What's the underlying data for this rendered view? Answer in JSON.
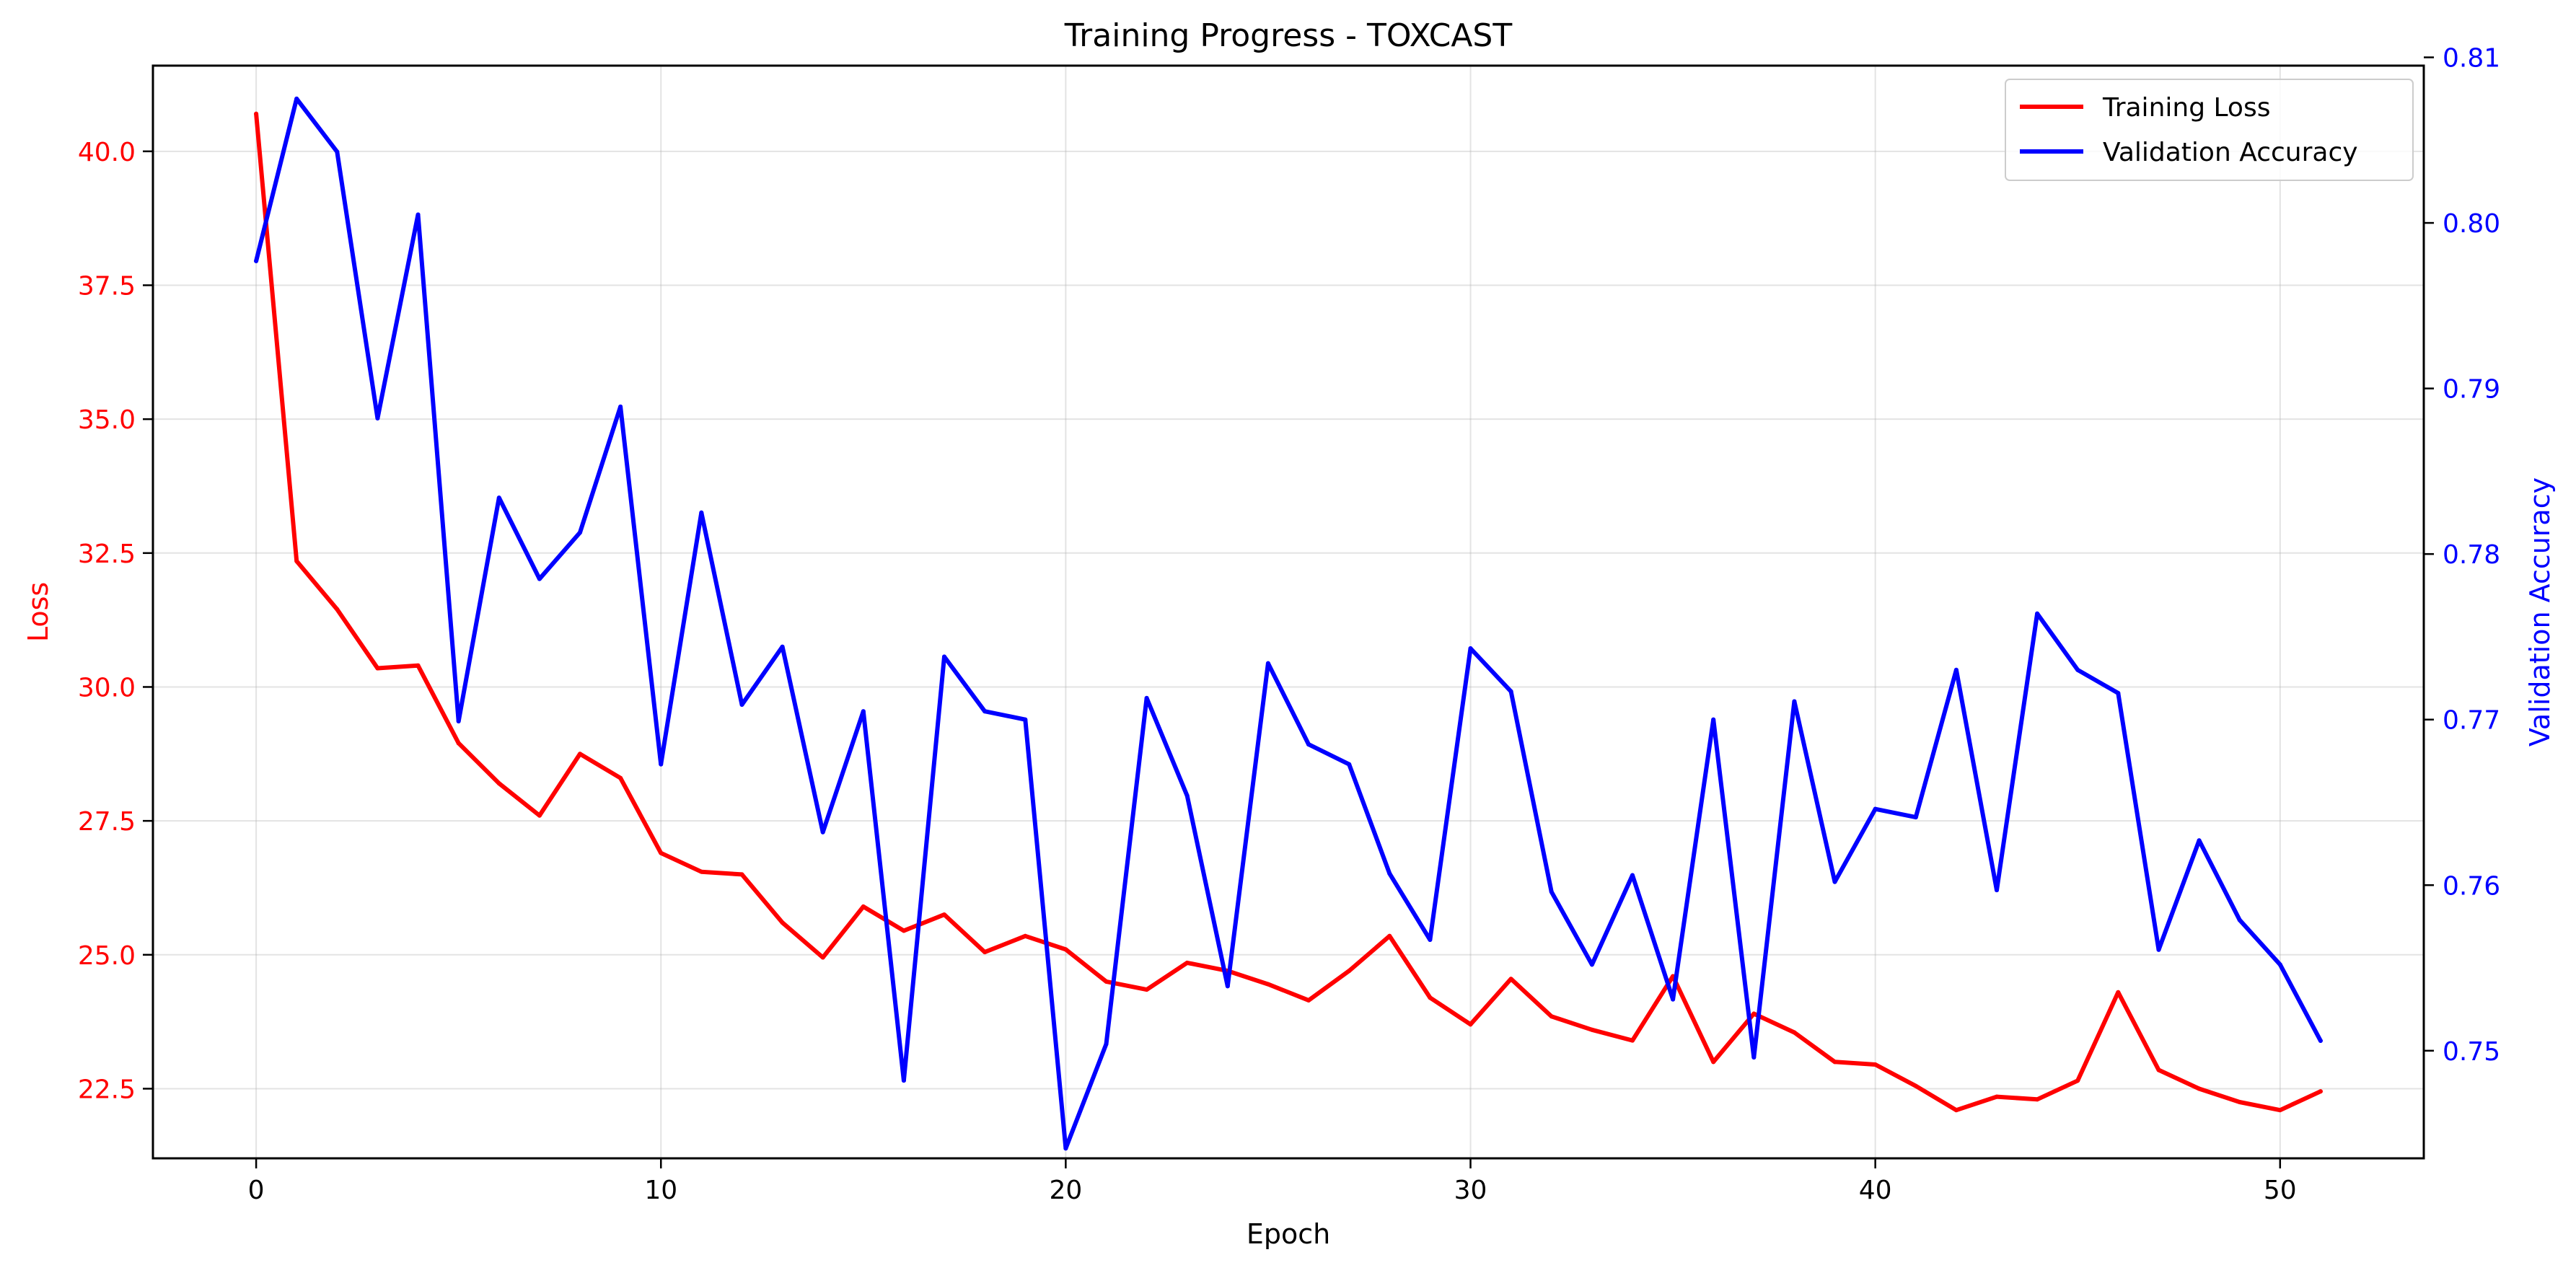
{
  "chart_data": {
    "type": "line",
    "title": "Training Progress - TOXCAST",
    "xlabel": "Epoch",
    "ylabel_left": "Loss",
    "ylabel_right": "Validation Accuracy",
    "xlim": [
      -2.55,
      53.55
    ],
    "ylim_left": [
      21.2,
      41.6
    ],
    "ylim_right": [
      0.7435,
      0.8095
    ],
    "x_ticks": [
      0,
      10,
      20,
      30,
      40,
      50
    ],
    "y_ticks_left": [
      22.5,
      25.0,
      27.5,
      30.0,
      32.5,
      35.0,
      37.5,
      40.0
    ],
    "y_ticks_right": [
      0.75,
      0.76,
      0.77,
      0.78,
      0.79,
      0.8,
      0.81
    ],
    "grid": true,
    "legend_position": "top-right",
    "colors": {
      "loss": "#ff0000",
      "accuracy": "#0000ff"
    },
    "x": [
      0,
      1,
      2,
      3,
      4,
      5,
      6,
      7,
      8,
      9,
      10,
      11,
      12,
      13,
      14,
      15,
      16,
      17,
      18,
      19,
      20,
      21,
      22,
      23,
      24,
      25,
      26,
      27,
      28,
      29,
      30,
      31,
      32,
      33,
      34,
      35,
      36,
      37,
      38,
      39,
      40,
      41,
      42,
      43,
      44,
      45,
      46,
      47,
      48,
      49,
      50,
      51
    ],
    "series": [
      {
        "name": "Training Loss",
        "axis": "left",
        "color": "#ff0000",
        "values": [
          40.7,
          32.35,
          31.45,
          30.35,
          30.4,
          28.95,
          28.2,
          27.6,
          28.75,
          28.3,
          26.9,
          26.55,
          26.5,
          25.6,
          24.95,
          25.9,
          25.45,
          25.75,
          25.05,
          25.35,
          25.1,
          24.5,
          24.35,
          24.85,
          24.7,
          24.45,
          24.15,
          24.7,
          25.35,
          24.2,
          23.7,
          24.55,
          23.85,
          23.6,
          23.4,
          24.6,
          23.0,
          23.9,
          23.55,
          23.0,
          22.95,
          22.55,
          22.1,
          22.35,
          22.3,
          22.65,
          24.3,
          22.85,
          22.5,
          22.25,
          22.1,
          22.45
        ]
      },
      {
        "name": "Validation Accuracy",
        "axis": "right",
        "color": "#0000ff",
        "values": [
          0.7977,
          0.8075,
          0.8043,
          0.7882,
          0.8005,
          0.7699,
          0.7834,
          0.7785,
          0.7813,
          0.7889,
          0.7673,
          0.7825,
          0.7709,
          0.7744,
          0.7632,
          0.7705,
          0.7482,
          0.7738,
          0.7705,
          0.77,
          0.7441,
          0.7504,
          0.7713,
          0.7654,
          0.7539,
          0.7734,
          0.7685,
          0.7673,
          0.7607,
          0.7567,
          0.7743,
          0.7717,
          0.7596,
          0.7552,
          0.7606,
          0.7531,
          0.77,
          0.7496,
          0.7711,
          0.7602,
          0.7646,
          0.7641,
          0.773,
          0.7597,
          0.7764,
          0.773,
          0.7716,
          0.7561,
          0.7627,
          0.7579,
          0.7552,
          0.7506
        ]
      }
    ]
  }
}
